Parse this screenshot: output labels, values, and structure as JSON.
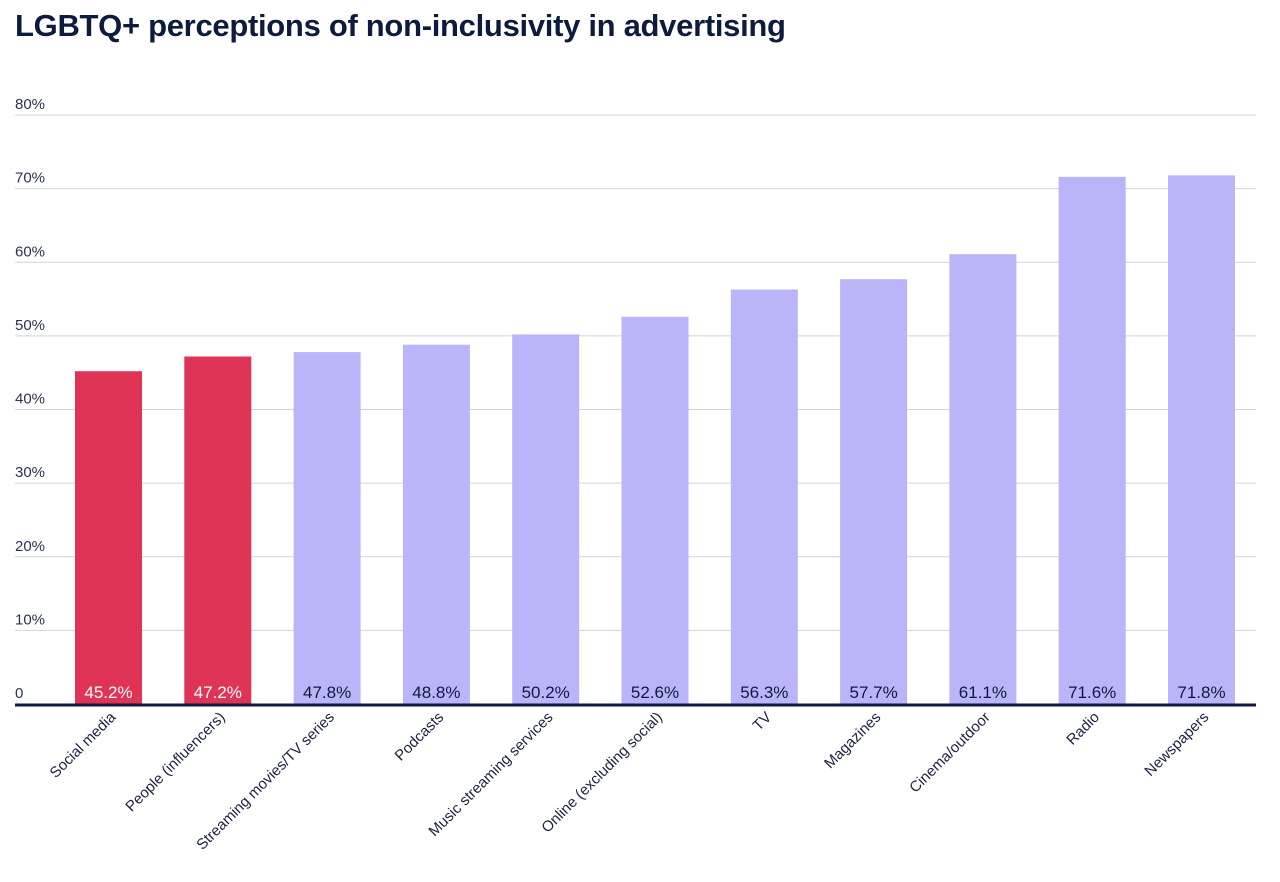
{
  "chart_data": {
    "type": "bar",
    "title": "LGBTQ+ perceptions of non-inclusivity in advertising",
    "xlabel": "",
    "ylabel": "",
    "ylim": [
      0,
      80
    ],
    "yticks": [
      "0",
      "10%",
      "20%",
      "30%",
      "40%",
      "50%",
      "60%",
      "70%",
      "80%"
    ],
    "grid": true,
    "categories": [
      "Social media",
      "People (influencers)",
      "Streaming movies/TV series",
      "Podcasts",
      "Music streaming services",
      "Online (excluding social)",
      "TV",
      "Magazines",
      "Cinema/outdoor",
      "Radio",
      "Newspapers"
    ],
    "values": [
      45.2,
      47.2,
      47.8,
      48.8,
      50.2,
      52.6,
      56.3,
      57.7,
      61.1,
      71.6,
      71.8
    ],
    "data_labels": [
      "45.2%",
      "47.2%",
      "47.8%",
      "48.8%",
      "50.2%",
      "52.6%",
      "56.3%",
      "57.7%",
      "61.1%",
      "71.6%",
      "71.8%"
    ],
    "highlighted": [
      true,
      true,
      false,
      false,
      false,
      false,
      false,
      false,
      false,
      false,
      false
    ],
    "colors": {
      "highlight": "#e03457",
      "default": "#bab4f9",
      "grid": "#cfd3dc",
      "axis": "#0d1b3e",
      "title": "#0d1b3e",
      "label_on_highlight": "#ffffff",
      "label_on_default": "#0d1b3e"
    }
  }
}
